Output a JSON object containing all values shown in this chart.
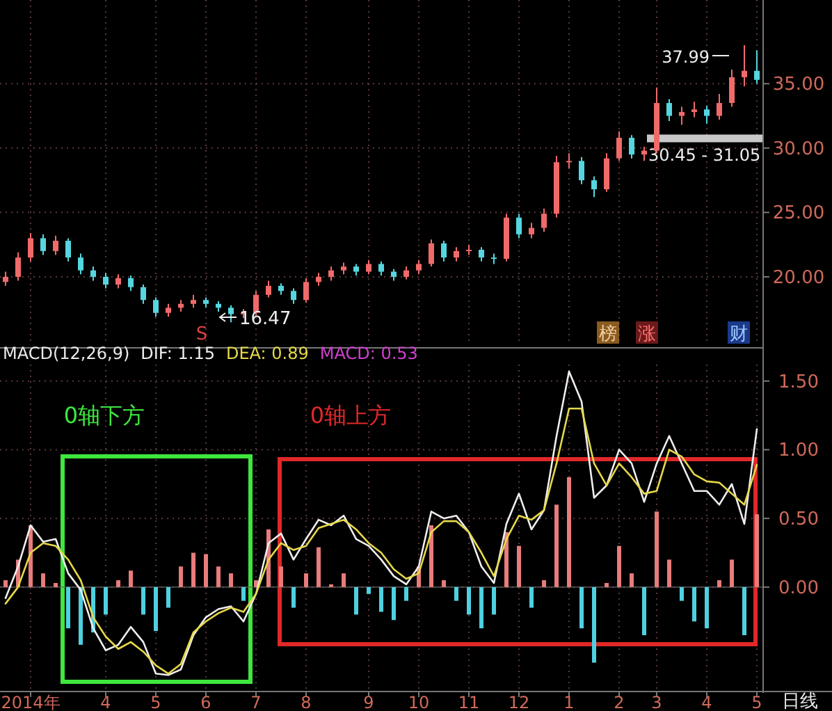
{
  "chart_data": [
    {
      "type": "candlestick",
      "categories": [
        null,
        null,
        null,
        null,
        null,
        null,
        null,
        null,
        null,
        null,
        null,
        null,
        null,
        null,
        null,
        null,
        null,
        null,
        null,
        null,
        null,
        null,
        null,
        null,
        null,
        null,
        null,
        null,
        null,
        null,
        null,
        null,
        null,
        null,
        null,
        null,
        null,
        null,
        null,
        null,
        null,
        null,
        null,
        null,
        null,
        null,
        null,
        null,
        null,
        null,
        null,
        null,
        null,
        null,
        null,
        null,
        null,
        null,
        null,
        null,
        null
      ],
      "ohlc": [
        [
          19.6,
          20.4,
          19.3,
          20.0
        ],
        [
          20.0,
          21.9,
          19.7,
          21.5
        ],
        [
          21.5,
          23.4,
          21.2,
          23.0
        ],
        [
          23.0,
          23.3,
          21.7,
          22.0
        ],
        [
          22.0,
          23.2,
          21.7,
          22.8
        ],
        [
          22.8,
          23.0,
          21.2,
          21.5
        ],
        [
          21.5,
          21.8,
          20.2,
          20.5
        ],
        [
          20.5,
          20.8,
          19.7,
          20.0
        ],
        [
          20.0,
          20.3,
          19.1,
          19.4
        ],
        [
          19.4,
          20.2,
          19.1,
          19.9
        ],
        [
          19.9,
          20.1,
          18.9,
          19.2
        ],
        [
          19.2,
          19.4,
          17.9,
          18.2
        ],
        [
          18.2,
          18.4,
          16.9,
          17.2
        ],
        [
          17.2,
          17.9,
          16.9,
          17.6
        ],
        [
          17.6,
          18.2,
          17.3,
          17.9
        ],
        [
          17.9,
          18.6,
          17.6,
          18.2
        ],
        [
          18.2,
          18.4,
          17.6,
          17.9
        ],
        [
          17.9,
          18.1,
          17.3,
          17.6
        ],
        [
          17.6,
          17.8,
          16.47,
          17.1
        ],
        [
          17.1,
          17.5,
          16.8,
          17.2
        ],
        [
          17.2,
          18.9,
          17.0,
          18.6
        ],
        [
          18.6,
          19.7,
          18.4,
          19.3
        ],
        [
          19.3,
          19.5,
          18.6,
          18.9
        ],
        [
          18.9,
          19.1,
          17.9,
          18.2
        ],
        [
          18.2,
          19.9,
          18.0,
          19.6
        ],
        [
          19.6,
          20.3,
          19.3,
          20.0
        ],
        [
          20.0,
          20.8,
          19.7,
          20.5
        ],
        [
          20.5,
          21.1,
          20.2,
          20.8
        ],
        [
          20.8,
          21.0,
          20.1,
          20.4
        ],
        [
          20.4,
          21.3,
          20.2,
          21.0
        ],
        [
          21.0,
          21.2,
          20.1,
          20.4
        ],
        [
          20.4,
          20.6,
          19.7,
          20.0
        ],
        [
          20.0,
          20.8,
          19.8,
          20.5
        ],
        [
          20.5,
          21.3,
          20.2,
          21.0
        ],
        [
          21.0,
          22.9,
          20.8,
          22.6
        ],
        [
          22.6,
          22.8,
          21.2,
          21.5
        ],
        [
          21.5,
          22.3,
          21.2,
          22.0
        ],
        [
          22.0,
          22.5,
          21.7,
          22.1
        ],
        [
          22.1,
          22.3,
          21.2,
          21.5
        ],
        [
          21.5,
          21.8,
          21.0,
          21.4
        ],
        [
          21.4,
          24.9,
          21.2,
          24.6
        ],
        [
          24.6,
          24.9,
          23.0,
          23.3
        ],
        [
          23.3,
          24.2,
          23.0,
          23.8
        ],
        [
          23.8,
          25.3,
          23.5,
          24.9
        ],
        [
          24.9,
          29.4,
          24.6,
          28.9
        ],
        [
          28.9,
          29.6,
          28.4,
          29.0
        ],
        [
          29.0,
          29.3,
          27.2,
          27.5
        ],
        [
          27.5,
          27.8,
          26.2,
          26.8
        ],
        [
          26.8,
          29.6,
          26.6,
          29.2
        ],
        [
          29.2,
          31.3,
          29.0,
          30.8
        ],
        [
          30.8,
          31.0,
          29.2,
          29.5
        ],
        [
          29.5,
          30.1,
          29.0,
          29.8
        ],
        [
          29.8,
          34.7,
          29.6,
          33.5
        ],
        [
          33.5,
          33.8,
          32.1,
          32.5
        ],
        [
          32.5,
          33.2,
          31.8,
          32.8
        ],
        [
          32.8,
          33.6,
          32.4,
          33.0
        ],
        [
          33.0,
          33.3,
          31.9,
          32.5
        ],
        [
          32.5,
          34.2,
          32.2,
          33.5
        ],
        [
          33.5,
          36.1,
          33.2,
          35.5
        ],
        [
          35.5,
          37.99,
          34.8,
          36.0
        ],
        [
          36.0,
          37.6,
          35.0,
          35.3
        ]
      ],
      "colors": [
        "#f06a6a",
        "#f06a6a",
        "#f06a6a",
        "#55d6e0",
        "#f06a6a",
        "#55d6e0",
        "#55d6e0",
        "#55d6e0",
        "#55d6e0",
        "#f06a6a",
        "#55d6e0",
        "#55d6e0",
        "#55d6e0",
        "#f06a6a",
        "#f06a6a",
        "#f06a6a",
        "#55d6e0",
        "#55d6e0",
        "#55d6e0",
        "#f06a6a",
        "#f06a6a",
        "#f06a6a",
        "#55d6e0",
        "#55d6e0",
        "#f06a6a",
        "#f06a6a",
        "#f06a6a",
        "#f06a6a",
        "#55d6e0",
        "#f06a6a",
        "#55d6e0",
        "#55d6e0",
        "#f06a6a",
        "#f06a6a",
        "#f06a6a",
        "#55d6e0",
        "#f06a6a",
        "#f06a6a",
        "#55d6e0",
        "#55d6e0",
        "#f06a6a",
        "#55d6e0",
        "#f06a6a",
        "#f06a6a",
        "#f06a6a",
        "#f06a6a",
        "#55d6e0",
        "#55d6e0",
        "#f06a6a",
        "#f06a6a",
        "#55d6e0",
        "#f06a6a",
        "#f06a6a",
        "#55d6e0",
        "#f06a6a",
        "#f06a6a",
        "#55d6e0",
        "#f06a6a",
        "#f06a6a",
        "#f06a6a",
        "#55d6e0"
      ],
      "ylim": [
        14.7,
        41.5
      ],
      "yticks": [
        {
          "value": 20,
          "label": "20.00"
        },
        {
          "value": 25,
          "label": "25.00"
        },
        {
          "value": 30,
          "label": "30.00"
        },
        {
          "value": 35,
          "label": "35.00"
        }
      ],
      "tick_labels": "y",
      "grid": true,
      "bands": [
        {
          "axis": "y",
          "from": 30.45,
          "to": 31.05,
          "label": "30.45 - 31.05",
          "color": "#c8c8c8"
        }
      ],
      "annotations": [
        "16.47",
        "37.99",
        "S",
        "榜",
        "涨",
        "财"
      ]
    },
    {
      "type": "bar",
      "title": "MACD(12,26,9)",
      "legend": "top left",
      "grid": true,
      "categories": [
        null,
        null,
        "2014年",
        null,
        null,
        null,
        null,
        null,
        "4",
        null,
        null,
        null,
        "5",
        null,
        null,
        null,
        "6",
        null,
        null,
        null,
        "7",
        null,
        null,
        null,
        "8",
        null,
        null,
        null,
        null,
        "9",
        null,
        null,
        null,
        "10",
        null,
        null,
        null,
        "11",
        null,
        null,
        null,
        "12",
        null,
        null,
        null,
        "1",
        null,
        null,
        null,
        "2",
        null,
        null,
        "3",
        null,
        null,
        null,
        "4",
        null,
        null,
        null,
        "5"
      ],
      "ylim": [
        -0.75,
        1.62
      ],
      "yticks": [
        {
          "value": 0,
          "label": "0.00"
        },
        {
          "value": 0.5,
          "label": "0.50"
        },
        {
          "value": 1,
          "label": "1.00"
        },
        {
          "value": 1.5,
          "label": "1.50"
        }
      ],
      "series": [
        {
          "values": [
            0.05,
            0.2,
            0.45,
            0.1,
            0.03,
            -0.3,
            -0.42,
            -0.33,
            -0.2,
            0.05,
            0.12,
            -0.2,
            -0.32,
            -0.15,
            0.15,
            0.25,
            0.24,
            0.15,
            0.1,
            -0.1,
            0.05,
            0.42,
            0.15,
            -0.15,
            0.1,
            0.29,
            0.02,
            0.1,
            -0.2,
            -0.05,
            -0.18,
            -0.24,
            -0.1,
            0.15,
            0.45,
            0.05,
            -0.1,
            -0.2,
            -0.3,
            -0.2,
            0.4,
            0.3,
            -0.15,
            0.05,
            0.6,
            0.8,
            -0.3,
            -0.55,
            0.03,
            0.3,
            0.1,
            -0.35,
            0.55,
            0.2,
            -0.1,
            -0.25,
            -0.3,
            0.05,
            0.2,
            -0.35,
            0.53
          ],
          "colors": [
            "#e87c7c",
            "#e87c7c",
            "#e87c7c",
            "#e87c7c",
            "#e87c7c",
            "#4fd0e0",
            "#4fd0e0",
            "#4fd0e0",
            "#4fd0e0",
            "#e87c7c",
            "#e87c7c",
            "#4fd0e0",
            "#4fd0e0",
            "#4fd0e0",
            "#e87c7c",
            "#e87c7c",
            "#e87c7c",
            "#e87c7c",
            "#e87c7c",
            "#4fd0e0",
            "#e87c7c",
            "#e87c7c",
            "#e87c7c",
            "#4fd0e0",
            "#e87c7c",
            "#e87c7c",
            "#e87c7c",
            "#e87c7c",
            "#4fd0e0",
            "#4fd0e0",
            "#4fd0e0",
            "#4fd0e0",
            "#4fd0e0",
            "#e87c7c",
            "#e87c7c",
            "#e87c7c",
            "#4fd0e0",
            "#4fd0e0",
            "#4fd0e0",
            "#4fd0e0",
            "#e87c7c",
            "#e87c7c",
            "#4fd0e0",
            "#e87c7c",
            "#e87c7c",
            "#e87c7c",
            "#4fd0e0",
            "#4fd0e0",
            "#e87c7c",
            "#e87c7c",
            "#e87c7c",
            "#4fd0e0",
            "#e87c7c",
            "#e87c7c",
            "#4fd0e0",
            "#4fd0e0",
            "#4fd0e0",
            "#e87c7c",
            "#e87c7c",
            "#4fd0e0",
            "#e87c7c"
          ]
        },
        {
          "name": "DIF: 1.15",
          "type": "line",
          "color": "#eeeeee",
          "values": [
            -0.08,
            0.15,
            0.45,
            0.33,
            0.35,
            0.1,
            -0.02,
            -0.3,
            -0.46,
            -0.42,
            -0.29,
            -0.4,
            -0.63,
            -0.64,
            -0.6,
            -0.35,
            -0.22,
            -0.16,
            -0.14,
            -0.25,
            -0.05,
            0.32,
            0.39,
            0.2,
            0.35,
            0.49,
            0.45,
            0.52,
            0.35,
            0.3,
            0.2,
            0.08,
            0.02,
            0.15,
            0.55,
            0.5,
            0.52,
            0.4,
            0.15,
            0.03,
            0.46,
            0.68,
            0.42,
            0.56,
            1.1,
            1.57,
            1.35,
            0.65,
            0.74,
            1.0,
            0.9,
            0.62,
            0.9,
            1.1,
            0.9,
            0.7,
            0.7,
            0.6,
            0.75,
            0.46,
            1.15
          ]
        },
        {
          "name": "DEA: 0.89",
          "type": "line",
          "color": "#e6d84a",
          "values": [
            -0.12,
            0.0,
            0.25,
            0.32,
            0.3,
            0.2,
            0.05,
            -0.22,
            -0.36,
            -0.45,
            -0.4,
            -0.47,
            -0.57,
            -0.63,
            -0.56,
            -0.33,
            -0.25,
            -0.19,
            -0.15,
            -0.18,
            -0.05,
            0.2,
            0.32,
            0.27,
            0.3,
            0.43,
            0.46,
            0.49,
            0.42,
            0.32,
            0.25,
            0.13,
            0.06,
            0.1,
            0.4,
            0.48,
            0.48,
            0.4,
            0.25,
            0.08,
            0.35,
            0.52,
            0.49,
            0.56,
            0.9,
            1.3,
            1.3,
            0.9,
            0.74,
            0.9,
            0.8,
            0.68,
            0.7,
            1.0,
            0.95,
            0.82,
            0.77,
            0.76,
            0.68,
            0.6,
            0.89
          ]
        }
      ],
      "annotations": [
        "MACD: 0.53",
        "0轴下方",
        "0轴上方",
        "日线"
      ]
    }
  ]
}
